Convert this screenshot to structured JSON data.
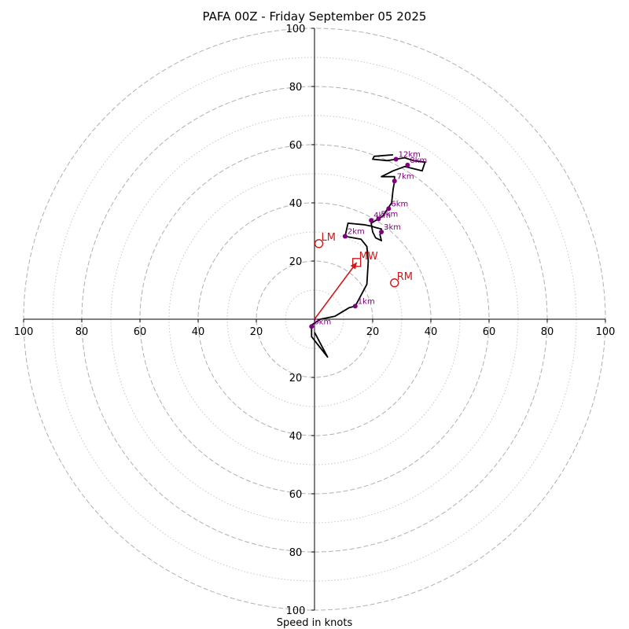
{
  "chart_data": {
    "type": "scatter",
    "subtype": "hodograph",
    "title": "PAFA 00Z - Friday September 05 2025",
    "xlabel": "Speed in knots",
    "ylabel": "",
    "range_knots": [
      -100,
      100
    ],
    "rings_major": [
      20,
      40,
      60,
      80,
      100
    ],
    "rings_minor": [
      10,
      30,
      50,
      70,
      90
    ],
    "tick_labels": [
      "100",
      "80",
      "60",
      "40",
      "20",
      "20",
      "40",
      "60",
      "80",
      "100"
    ],
    "hodograph_line": [
      [
        0,
        -4.5
      ],
      [
        4.5,
        -13
      ],
      [
        -1,
        -6
      ],
      [
        -1,
        -3
      ],
      [
        -1,
        -2
      ],
      [
        2,
        0
      ],
      [
        7,
        1
      ],
      [
        12,
        4
      ],
      [
        14,
        4.5
      ],
      [
        18,
        12
      ],
      [
        18.5,
        20
      ],
      [
        18,
        25
      ],
      [
        16,
        27.5
      ],
      [
        10.5,
        28.5
      ],
      [
        11.5,
        33
      ],
      [
        17,
        32.5
      ],
      [
        19.5,
        32
      ],
      [
        21,
        31.5
      ],
      [
        23,
        31
      ],
      [
        22.5,
        29
      ],
      [
        23,
        27
      ],
      [
        21,
        28
      ],
      [
        20,
        30
      ],
      [
        19.5,
        33
      ],
      [
        22,
        34.5
      ],
      [
        23.5,
        35.5
      ],
      [
        25.5,
        38.5
      ],
      [
        26.5,
        40
      ],
      [
        27,
        44.5
      ],
      [
        27.5,
        47.5
      ],
      [
        27.5,
        49
      ],
      [
        23,
        49
      ],
      [
        27,
        51
      ],
      [
        31,
        52.5
      ],
      [
        37,
        51
      ],
      [
        38,
        54
      ],
      [
        34,
        54.5
      ],
      [
        31,
        55.5
      ],
      [
        28,
        55
      ],
      [
        25,
        54.5
      ],
      [
        20,
        55
      ],
      [
        20.5,
        56
      ],
      [
        27,
        56.5
      ]
    ],
    "height_markers": [
      {
        "label": "0km",
        "x": -1,
        "y": -2.5
      },
      {
        "label": "1km",
        "x": 14,
        "y": 4.5
      },
      {
        "label": "2km",
        "x": 10.5,
        "y": 28.5
      },
      {
        "label": "3km",
        "x": 23,
        "y": 30
      },
      {
        "label": "4km",
        "x": 19.5,
        "y": 34
      },
      {
        "label": "5km",
        "x": 22,
        "y": 34.5
      },
      {
        "label": "6km",
        "x": 25.5,
        "y": 38
      },
      {
        "label": "7km",
        "x": 27.5,
        "y": 47.5
      },
      {
        "label": "8km",
        "x": 32,
        "y": 53
      },
      {
        "label": "12km",
        "x": 28,
        "y": 55
      }
    ],
    "storm_motion": [
      {
        "label": "LM",
        "x": 1.5,
        "y": 26,
        "marker": "circle"
      },
      {
        "label": "MW",
        "x": 14.5,
        "y": 19.5,
        "marker": "square"
      },
      {
        "label": "RM",
        "x": 27.5,
        "y": 12.5,
        "marker": "circle"
      }
    ],
    "mean_wind_vector": {
      "from": [
        0,
        0
      ],
      "to": [
        14.5,
        19.5
      ]
    },
    "colors": {
      "hodograph": "#000000",
      "markers": "#800080",
      "storm": "#cc1a1a",
      "ring_major": "#b0b0b0",
      "ring_minor": "#c8c8c8"
    },
    "grid": true
  }
}
